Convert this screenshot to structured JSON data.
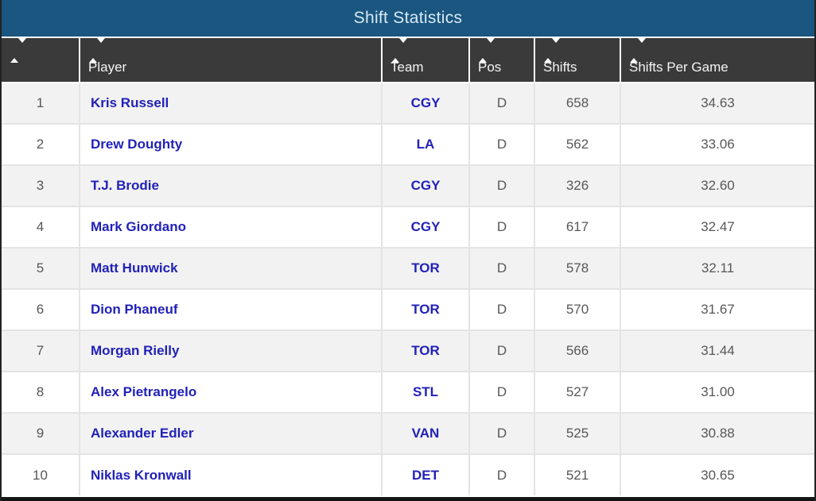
{
  "title": "Shift Statistics",
  "icons": {
    "sort": "up-down-sort-arrows"
  },
  "colors": {
    "title_bar_bg": "#1a5680",
    "title_text": "#d8eaf7",
    "header_bg": "#3a3a3a",
    "header_text": "#f4f4f4",
    "row_alt_bg": "#f2f2f2",
    "row_bg": "#ffffff",
    "link_blue": "#2121b8",
    "stat_text": "#575757",
    "grid_line": "#e4e4e4",
    "frame": "#141414"
  },
  "columns": [
    {
      "label": ""
    },
    {
      "label": "Player"
    },
    {
      "label": "Team"
    },
    {
      "label": "Pos"
    },
    {
      "label": "Shifts"
    },
    {
      "label": "Shifts Per Game"
    }
  ],
  "rows": [
    {
      "rank": "1",
      "player": "Kris Russell",
      "team": "CGY",
      "pos": "D",
      "shifts": "658",
      "spg": "34.63"
    },
    {
      "rank": "2",
      "player": "Drew Doughty",
      "team": "LA",
      "pos": "D",
      "shifts": "562",
      "spg": "33.06"
    },
    {
      "rank": "3",
      "player": "T.J. Brodie",
      "team": "CGY",
      "pos": "D",
      "shifts": "326",
      "spg": "32.60"
    },
    {
      "rank": "4",
      "player": "Mark Giordano",
      "team": "CGY",
      "pos": "D",
      "shifts": "617",
      "spg": "32.47"
    },
    {
      "rank": "5",
      "player": "Matt Hunwick",
      "team": "TOR",
      "pos": "D",
      "shifts": "578",
      "spg": "32.11"
    },
    {
      "rank": "6",
      "player": "Dion Phaneuf",
      "team": "TOR",
      "pos": "D",
      "shifts": "570",
      "spg": "31.67"
    },
    {
      "rank": "7",
      "player": "Morgan Rielly",
      "team": "TOR",
      "pos": "D",
      "shifts": "566",
      "spg": "31.44"
    },
    {
      "rank": "8",
      "player": "Alex Pietrangelo",
      "team": "STL",
      "pos": "D",
      "shifts": "527",
      "spg": "31.00"
    },
    {
      "rank": "9",
      "player": "Alexander Edler",
      "team": "VAN",
      "pos": "D",
      "shifts": "525",
      "spg": "30.88"
    },
    {
      "rank": "10",
      "player": "Niklas Kronwall",
      "team": "DET",
      "pos": "D",
      "shifts": "521",
      "spg": "30.65"
    }
  ]
}
